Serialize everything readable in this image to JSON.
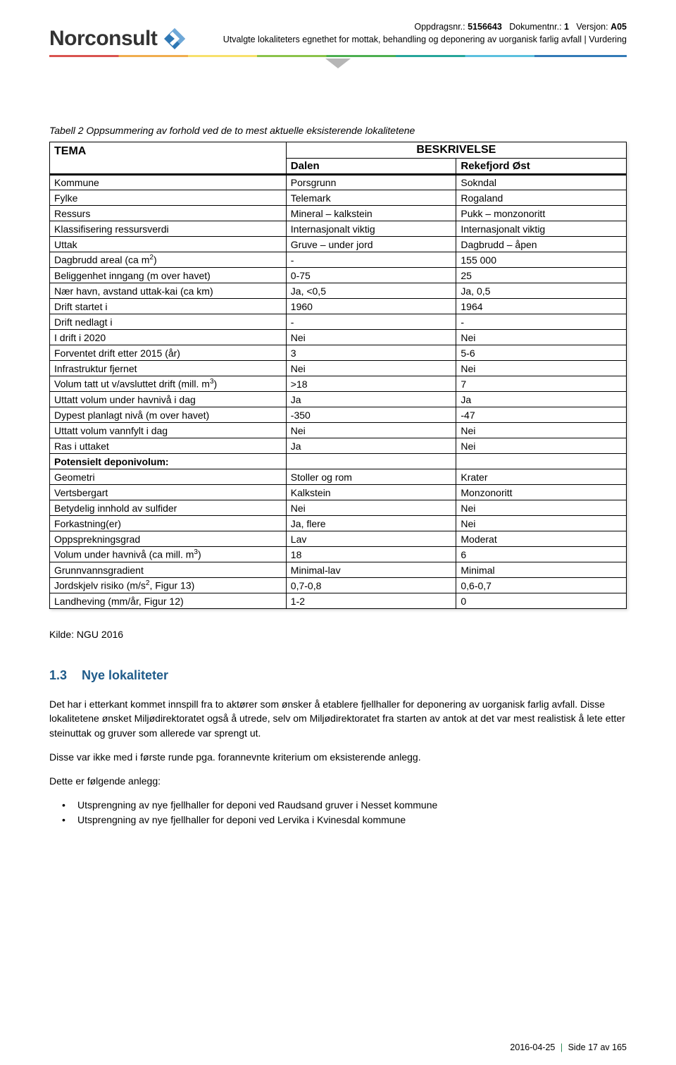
{
  "logo": {
    "text": "Norconsult"
  },
  "meta": {
    "line1_parts": {
      "oppdrag_label": "Oppdragsnr.:",
      "oppdrag_val": "5156643",
      "dok_label": "Dokumentnr.:",
      "dok_val": "1",
      "versjon_label": "Versjon:",
      "versjon_val": "A05"
    },
    "line2": "Utvalgte lokaliteters egnethet for mottak, behandling og deponering av uorganisk farlig avfall  |  Vurdering"
  },
  "caption": "Tabell 2 Oppsummering av forhold ved de to mest aktuelle eksisterende lokalitetene",
  "table": {
    "head": {
      "tema": "TEMA",
      "besk": "BESKRIVELSE",
      "col1": "Dalen",
      "col2": "Rekefjord Øst"
    },
    "rows": [
      {
        "label": "Kommune",
        "c1": "Porsgrunn",
        "c2": "Sokndal"
      },
      {
        "label": "Fylke",
        "c1": "Telemark",
        "c2": "Rogaland"
      },
      {
        "label": "Ressurs",
        "c1": "Mineral – kalkstein",
        "c2": "Pukk – monzonoritt"
      },
      {
        "label": "Klassifisering ressursverdi",
        "c1": "Internasjonalt viktig",
        "c2": "Internasjonalt viktig"
      },
      {
        "label": "Uttak",
        "c1": "Gruve – under jord",
        "c2": "Dagbrudd – åpen"
      },
      {
        "label_html": "Dagbrudd areal (ca m<span class=\"super\">2</span>)",
        "c1": "-",
        "c2": "155 000"
      },
      {
        "label": "Beliggenhet inngang (m over havet)",
        "c1": "0-75",
        "c2": "25"
      },
      {
        "label": "Nær havn, avstand uttak-kai (ca km)",
        "c1": "Ja, <0,5",
        "c2": "Ja, 0,5"
      },
      {
        "label": "Drift startet i",
        "c1": "1960",
        "c2": "1964"
      },
      {
        "label": "Drift nedlagt i",
        "c1": "-",
        "c2": "-"
      },
      {
        "label": "I drift i 2020",
        "c1": "Nei",
        "c2": "Nei"
      },
      {
        "label": "Forventet drift etter 2015 (år)",
        "c1": "3",
        "c2": "5-6"
      },
      {
        "label": "Infrastruktur fjernet",
        "c1": "Nei",
        "c2": "Nei"
      },
      {
        "label_html": "Volum tatt ut v/avsluttet drift (mill. m<span class=\"super\">3</span>)",
        "c1": ">18",
        "c2": "7"
      },
      {
        "label": "Uttatt volum under havnivå i dag",
        "c1": "Ja",
        "c2": "Ja"
      },
      {
        "label": "Dypest planlagt nivå (m over havet)",
        "c1": "-350",
        "c2": "-47"
      },
      {
        "label": "Uttatt volum vannfylt i dag",
        "c1": "Nei",
        "c2": "Nei"
      },
      {
        "label": "Ras i uttaket",
        "c1": "Ja",
        "c2": "Nei"
      },
      {
        "section": true,
        "label": "Potensielt deponivolum:",
        "c1": "",
        "c2": ""
      },
      {
        "label": "Geometri",
        "c1": "Stoller og rom",
        "c2": "Krater"
      },
      {
        "label": "Vertsbergart",
        "c1": "Kalkstein",
        "c2": "Monzonoritt"
      },
      {
        "label": "Betydelig innhold av sulfider",
        "c1": "Nei",
        "c2": "Nei"
      },
      {
        "label": "Forkastning(er)",
        "c1": "Ja, flere",
        "c2": "Nei"
      },
      {
        "label": "Oppsprekningsgrad",
        "c1": "Lav",
        "c2": "Moderat"
      },
      {
        "label_html": "Volum under havnivå (ca mill. m<span class=\"super\">3</span>)",
        "c1": "18",
        "c2": "6"
      },
      {
        "label": "Grunnvannsgradient",
        "c1": "Minimal-lav",
        "c2": "Minimal"
      },
      {
        "label_html": "Jordskjelv risiko (m/s<span class=\"super\">2</span>, Figur 13)",
        "c1": "0,7-0,8",
        "c2": "0,6-0,7"
      },
      {
        "label": "Landheving (mm/år, Figur 12)",
        "c1": "1-2",
        "c2": "0"
      }
    ]
  },
  "kilde": "Kilde: NGU 2016",
  "section": {
    "num": "1.3",
    "title": "Nye lokaliteter"
  },
  "paragraphs": {
    "p1": "Det har i etterkant kommet innspill fra to aktører som ønsker å etablere fjellhaller for deponering av uorganisk farlig avfall. Disse lokalitetene ønsket Miljødirektoratet også å utrede, selv om Miljødirektoratet fra starten av antok at det var mest realistisk å lete etter steinuttak og gruver som allerede var sprengt ut.",
    "p2": "Disse var ikke med i første runde pga. forannevnte kriterium om eksisterende anlegg.",
    "p3": "Dette er følgende anlegg:"
  },
  "bullets": [
    "Utsprengning av nye fjellhaller for deponi ved Raudsand gruver i Nesset kommune",
    "Utsprengning av nye fjellhaller for deponi ved Lervika i Kvinesdal kommune"
  ],
  "footer": {
    "date": "2016-04-25",
    "page": "Side 17 av 165"
  }
}
